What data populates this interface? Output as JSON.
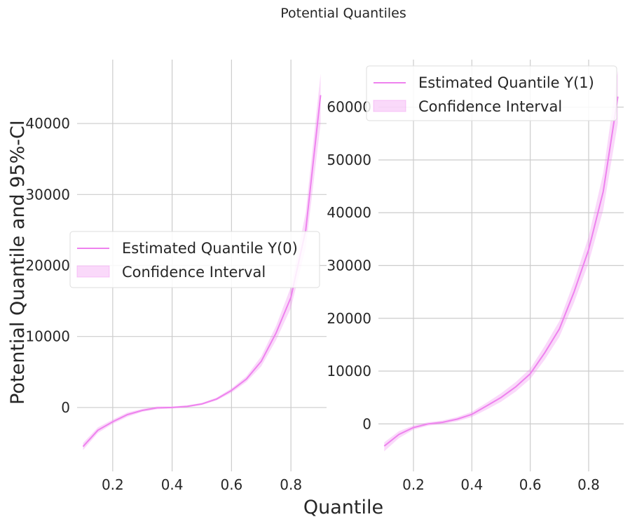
{
  "figure": {
    "title": "Potential Quantiles",
    "xlabel": "Quantile",
    "ylabel": "Potential Quantile and 95%-CI"
  },
  "colors": {
    "line": "#ee82ee",
    "band": "#ee82ee",
    "grid": "#cccccc",
    "text": "#262626"
  },
  "chart_data": [
    {
      "type": "line",
      "title": "",
      "xlabel": "",
      "ylabel": "",
      "xlim": [
        0.08,
        0.92
      ],
      "ylim": [
        -9000,
        49000
      ],
      "xticks": [
        0.2,
        0.4,
        0.6,
        0.8
      ],
      "xtick_labels": [
        "0.2",
        "0.4",
        "0.6",
        "0.8"
      ],
      "yticks": [
        0,
        10000,
        20000,
        30000,
        40000
      ],
      "ytick_labels": [
        "0",
        "10000",
        "20000",
        "30000",
        "40000"
      ],
      "grid": true,
      "legend": {
        "placement": "center-left",
        "entries": [
          "Estimated Quantile Y(0)",
          "Confidence Interval"
        ]
      },
      "x": [
        0.1,
        0.15,
        0.2,
        0.25,
        0.3,
        0.35,
        0.4,
        0.45,
        0.5,
        0.55,
        0.6,
        0.65,
        0.7,
        0.75,
        0.8,
        0.85,
        0.9
      ],
      "series": [
        {
          "name": "Estimated Quantile Y(0)",
          "values": [
            -5500,
            -3200,
            -2000,
            -1000,
            -400,
            -50,
            0,
            150,
            500,
            1200,
            2400,
            4000,
            6500,
            10500,
            15500,
            25000,
            44000
          ],
          "ci_lower": [
            -6000,
            -3600,
            -2300,
            -1300,
            -600,
            -250,
            -150,
            0,
            350,
            1000,
            2100,
            3600,
            5800,
            9500,
            14000,
            22500,
            40000
          ],
          "ci_upper": [
            -5000,
            -2800,
            -1700,
            -700,
            -200,
            150,
            150,
            300,
            650,
            1400,
            2700,
            4400,
            7200,
            11500,
            17000,
            27500,
            47000
          ]
        }
      ]
    },
    {
      "type": "line",
      "title": "",
      "xlabel": "",
      "ylabel": "",
      "xlim": [
        0.08,
        0.92
      ],
      "ylim": [
        -9000,
        69000
      ],
      "xticks": [
        0.2,
        0.4,
        0.6,
        0.8
      ],
      "xtick_labels": [
        "0.2",
        "0.4",
        "0.6",
        "0.8"
      ],
      "yticks": [
        0,
        10000,
        20000,
        30000,
        40000,
        50000,
        60000
      ],
      "ytick_labels": [
        "0",
        "10000",
        "20000",
        "30000",
        "40000",
        "50000",
        "60000"
      ],
      "grid": true,
      "legend": {
        "placement": "top-right",
        "entries": [
          "Estimated Quantile Y(1)",
          "Confidence Interval"
        ]
      },
      "x": [
        0.1,
        0.15,
        0.2,
        0.25,
        0.3,
        0.35,
        0.4,
        0.45,
        0.5,
        0.55,
        0.6,
        0.65,
        0.7,
        0.75,
        0.8,
        0.85,
        0.9
      ],
      "series": [
        {
          "name": "Estimated Quantile Y(1)",
          "values": [
            -4200,
            -2000,
            -700,
            0,
            300,
            900,
            1800,
            3400,
            5000,
            7000,
            9500,
            13500,
            18000,
            25000,
            33000,
            44000,
            62000
          ],
          "ci_lower": [
            -5200,
            -2700,
            -1100,
            -350,
            -50,
            500,
            1300,
            2700,
            4200,
            6100,
            8500,
            12200,
            16500,
            23000,
            30500,
            40500,
            57000
          ],
          "ci_upper": [
            -3500,
            -1400,
            -300,
            300,
            650,
            1300,
            2300,
            4000,
            5800,
            7900,
            10500,
            14800,
            19500,
            27000,
            35500,
            47500,
            67000
          ]
        }
      ]
    }
  ]
}
